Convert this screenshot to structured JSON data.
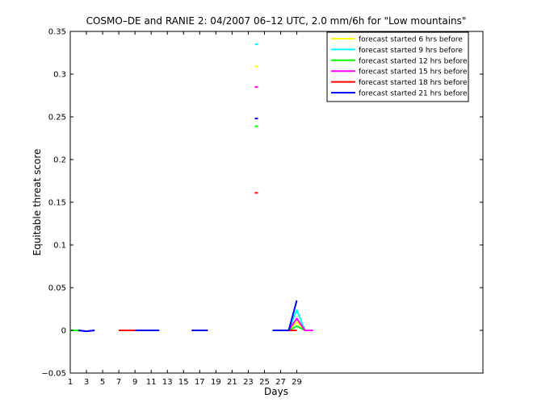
{
  "chart_data": {
    "type": "line",
    "title": "COSMO–DE and RANIE 2: 04/2007 06–12 UTC, 2.0 mm/6h for \"Low mountains\"",
    "xlabel": "Days",
    "ylabel": "Equitable threat score",
    "xlim": [
      1,
      52
    ],
    "ylim": [
      -0.05,
      0.35
    ],
    "x_ticks": [
      1,
      3,
      5,
      7,
      9,
      11,
      13,
      15,
      17,
      19,
      21,
      23,
      25,
      27,
      29
    ],
    "y_ticks": [
      -0.05,
      0,
      0.05,
      0.1,
      0.15,
      0.2,
      0.25,
      0.3,
      0.35
    ],
    "y_tick_labels": [
      "−0.05",
      "0",
      "0.05",
      "0.1",
      "0.15",
      "0.2",
      "0.25",
      "0.3",
      "0.35"
    ],
    "grid": false,
    "legend_position": "top-right",
    "series": [
      {
        "name": "forecast started 6 hrs before",
        "color": "#ffff00",
        "segments": [
          [
            [
              1,
              0
            ],
            [
              2,
              0
            ]
          ],
          [
            [
              7,
              0
            ],
            [
              8,
              0
            ]
          ],
          [
            [
              24,
              0.309
            ],
            [
              24,
              0.309
            ]
          ],
          [
            [
              28,
              0
            ],
            [
              29,
              0.01
            ],
            [
              30,
              0
            ],
            [
              31,
              0
            ]
          ]
        ]
      },
      {
        "name": "forecast started 9 hrs before",
        "color": "#00ffff",
        "segments": [
          [
            [
              1,
              0
            ],
            [
              2,
              0
            ]
          ],
          [
            [
              24,
              0.335
            ],
            [
              24,
              0.335
            ]
          ],
          [
            [
              28,
              0
            ],
            [
              29,
              0.024
            ],
            [
              30,
              0
            ]
          ]
        ]
      },
      {
        "name": "forecast started 12 hrs before",
        "color": "#00ff00",
        "segments": [
          [
            [
              1,
              0
            ],
            [
              2,
              0
            ]
          ],
          [
            [
              24,
              0.239
            ],
            [
              24,
              0.239
            ]
          ],
          [
            [
              28,
              0
            ],
            [
              29,
              0.005
            ],
            [
              30,
              0
            ]
          ]
        ]
      },
      {
        "name": "forecast started 15 hrs before",
        "color": "#ff00ff",
        "segments": [
          [
            [
              2,
              0
            ],
            [
              3,
              -0.001
            ],
            [
              4,
              0
            ]
          ],
          [
            [
              24,
              0.285
            ],
            [
              24,
              0.285
            ]
          ],
          [
            [
              28,
              0
            ],
            [
              29,
              0.014
            ],
            [
              30,
              0
            ],
            [
              31,
              0
            ]
          ]
        ]
      },
      {
        "name": "forecast started 18 hrs before",
        "color": "#ff0000",
        "segments": [
          [
            [
              7,
              0
            ],
            [
              8,
              0
            ],
            [
              9,
              0
            ]
          ],
          [
            [
              24,
              0.161
            ],
            [
              24,
              0.161
            ]
          ],
          [
            [
              28,
              0
            ],
            [
              29,
              0
            ]
          ]
        ]
      },
      {
        "name": "forecast started 21 hrs before",
        "color": "#0000ff",
        "segments": [
          [
            [
              2,
              0
            ],
            [
              3,
              -0.001
            ],
            [
              4,
              0
            ]
          ],
          [
            [
              9,
              0
            ],
            [
              10,
              0
            ],
            [
              11,
              0
            ],
            [
              12,
              0
            ]
          ],
          [
            [
              16,
              0
            ],
            [
              17,
              0
            ],
            [
              18,
              0
            ]
          ],
          [
            [
              26,
              0
            ],
            [
              27,
              0
            ],
            [
              28,
              0
            ],
            [
              29,
              0.035
            ]
          ],
          [
            [
              24,
              0.248
            ],
            [
              24,
              0.248
            ]
          ]
        ]
      }
    ]
  }
}
